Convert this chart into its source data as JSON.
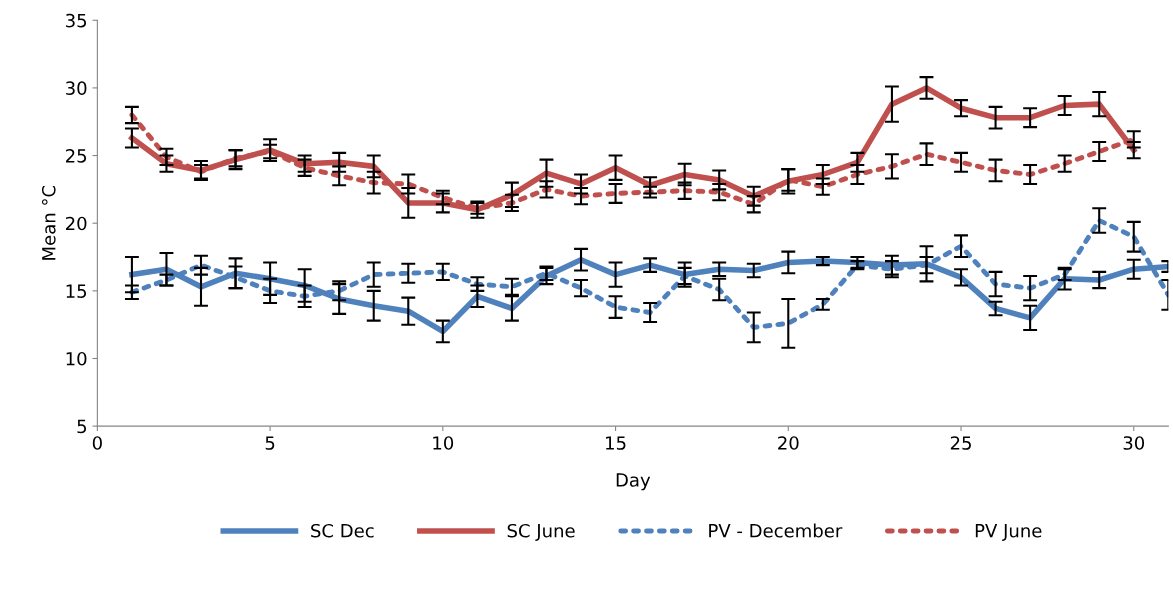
{
  "chart_data": {
    "type": "line",
    "xlabel": "Day",
    "ylabel": "Mean °C",
    "xlim": [
      0,
      31
    ],
    "xticks": [
      0,
      5,
      10,
      15,
      20,
      25,
      30
    ],
    "ylim": [
      5,
      35
    ],
    "yticks": [
      5,
      10,
      15,
      20,
      25,
      30,
      35
    ],
    "grid": false,
    "legend": "bottom",
    "marker": "none",
    "series": [
      {
        "name": "SC Dec",
        "color": "#4f81bd",
        "line_style": "solid",
        "x": [
          1,
          2,
          3,
          4,
          5,
          6,
          7,
          8,
          9,
          10,
          11,
          12,
          13,
          14,
          15,
          16,
          17,
          18,
          19,
          20,
          21,
          22,
          23,
          24,
          25,
          26,
          27,
          28,
          29,
          30,
          31
        ],
        "values": [
          16.2,
          16.6,
          15.3,
          16.3,
          15.9,
          15.4,
          14.4,
          13.9,
          13.5,
          12.0,
          14.6,
          13.7,
          16.1,
          17.3,
          16.2,
          16.9,
          16.2,
          16.6,
          16.5,
          17.1,
          17.2,
          17.1,
          16.9,
          17.0,
          16.0,
          13.7,
          13.0,
          15.9,
          15.8,
          16.6,
          16.8
        ],
        "errors": [
          1.3,
          1.2,
          1.4,
          1.1,
          1.2,
          1.2,
          1.1,
          1.1,
          1.0,
          0.8,
          0.8,
          0.9,
          0.6,
          0.8,
          0.9,
          0.5,
          0.9,
          0.5,
          0.5,
          0.8,
          0.3,
          0.4,
          0.7,
          1.3,
          0.6,
          0.5,
          0.9,
          0.8,
          0.6,
          0.7,
          0.4
        ]
      },
      {
        "name": "SC June",
        "color": "#c0504d",
        "line_style": "solid",
        "x": [
          1,
          2,
          3,
          4,
          5,
          6,
          7,
          8,
          9,
          10,
          11,
          12,
          13,
          14,
          15,
          16,
          17,
          18,
          19,
          20,
          21,
          22,
          23,
          24,
          25,
          26,
          27,
          28,
          29,
          30
        ],
        "values": [
          26.3,
          24.4,
          23.9,
          24.7,
          25.4,
          24.4,
          24.5,
          24.2,
          21.5,
          21.5,
          21.0,
          22.1,
          23.7,
          22.9,
          24.1,
          22.8,
          23.6,
          23.2,
          22.0,
          23.1,
          23.6,
          24.5,
          28.8,
          30.0,
          28.5,
          27.8,
          27.8,
          28.7,
          28.8,
          25.4
        ],
        "errors": [
          0.7,
          0.6,
          0.7,
          0.7,
          0.8,
          0.6,
          0.7,
          0.8,
          1.1,
          0.7,
          0.6,
          0.9,
          1.0,
          0.7,
          0.9,
          0.6,
          0.8,
          0.7,
          0.7,
          0.9,
          0.7,
          0.7,
          1.3,
          0.8,
          0.6,
          0.8,
          0.7,
          0.7,
          0.9,
          0.6
        ]
      },
      {
        "name": "PV - December",
        "color": "#4f81bd",
        "line_style": "dotted",
        "x": [
          1,
          2,
          3,
          4,
          5,
          6,
          7,
          8,
          9,
          10,
          11,
          12,
          13,
          14,
          15,
          16,
          17,
          18,
          19,
          20,
          21,
          22,
          23,
          24,
          25,
          26,
          27,
          28,
          29,
          30,
          31
        ],
        "values": [
          14.9,
          15.8,
          16.9,
          16.0,
          15.0,
          14.6,
          15.0,
          16.2,
          16.3,
          16.4,
          15.5,
          15.3,
          16.3,
          15.2,
          13.8,
          13.4,
          16.1,
          15.1,
          12.3,
          12.6,
          14.0,
          16.9,
          16.6,
          16.9,
          18.3,
          15.5,
          15.2,
          16.2,
          20.2,
          19.0,
          14.7
        ],
        "errors": [
          0.5,
          0.4,
          0.7,
          0.8,
          0.9,
          0.8,
          0.7,
          0.9,
          0.7,
          0.6,
          0.5,
          0.6,
          0.5,
          0.6,
          0.8,
          0.7,
          0.6,
          0.8,
          1.1,
          1.8,
          0.4,
          0.3,
          0.6,
          0.6,
          0.8,
          0.9,
          0.9,
          0.4,
          0.9,
          1.1,
          1.1
        ]
      },
      {
        "name": "PV June",
        "color": "#c0504d",
        "line_style": "dotted",
        "x": [
          1,
          2,
          3,
          4,
          5,
          6,
          7,
          8,
          9,
          10,
          11,
          12,
          13,
          14,
          15,
          16,
          17,
          18,
          19,
          20,
          21,
          22,
          23,
          24,
          25,
          26,
          27,
          28,
          29,
          30
        ],
        "values": [
          28.0,
          24.9,
          23.8,
          24.8,
          25.3,
          24.1,
          23.5,
          23.0,
          22.9,
          21.9,
          21.1,
          21.5,
          22.5,
          22.0,
          22.2,
          22.3,
          22.4,
          22.3,
          21.4,
          23.2,
          22.7,
          23.6,
          24.2,
          25.1,
          24.5,
          23.9,
          23.6,
          24.4,
          25.3,
          26.2
        ],
        "errors": [
          0.6,
          0.6,
          0.5,
          0.6,
          0.5,
          0.6,
          0.7,
          0.8,
          0.7,
          0.5,
          0.4,
          0.6,
          0.6,
          0.6,
          0.7,
          0.4,
          0.6,
          0.6,
          0.6,
          0.8,
          0.6,
          0.7,
          0.9,
          0.8,
          0.7,
          0.8,
          0.7,
          0.6,
          0.7,
          0.6
        ]
      }
    ]
  }
}
